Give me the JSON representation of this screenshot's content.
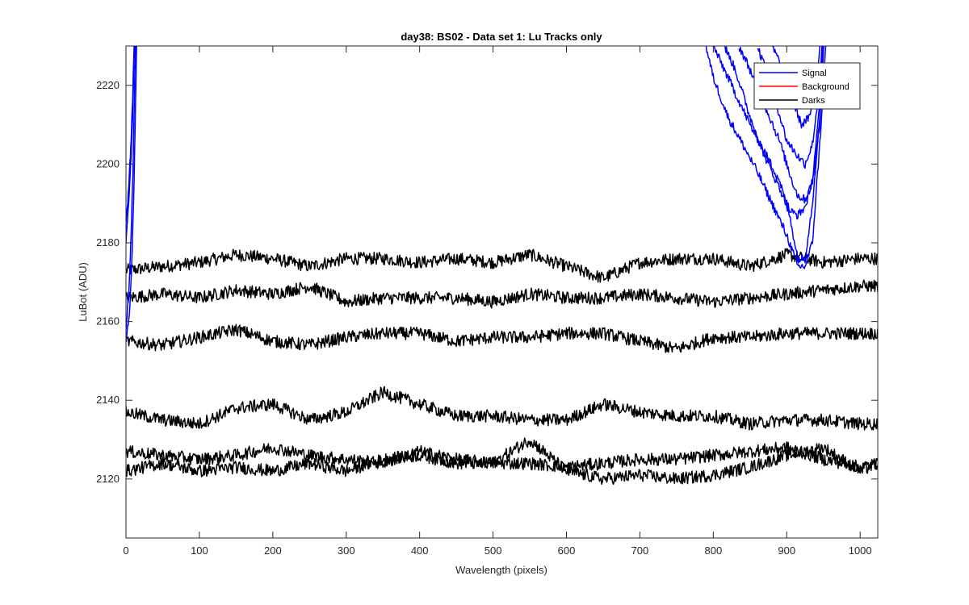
{
  "chart_data": {
    "type": "line",
    "title": "day38: BS02 - Data set 1: Lu Tracks only",
    "xlabel": "Wavelength (pixels)",
    "ylabel": "LuBot (ADU)",
    "xlim": [
      0,
      1024
    ],
    "ylim": [
      2105,
      2230
    ],
    "x_ticks": [
      0,
      100,
      200,
      300,
      400,
      500,
      600,
      700,
      800,
      900,
      1000
    ],
    "y_ticks": [
      2120,
      2140,
      2160,
      2180,
      2200,
      2220
    ],
    "grid": false,
    "legend": {
      "placement": "top-right",
      "entries": [
        {
          "label": "Signal",
          "color": "#0000ff"
        },
        {
          "label": "Background",
          "color": "#ff0000"
        },
        {
          "label": "Darks",
          "color": "#000000"
        }
      ]
    },
    "dark_tracks": [
      {
        "x": [
          0,
          50,
          100,
          150,
          200,
          250,
          300,
          350,
          400,
          450,
          500,
          550,
          600,
          650,
          700,
          750,
          800,
          850,
          900,
          950,
          1000,
          1024
        ],
        "y": [
          2173,
          2174,
          2175,
          2177,
          2176,
          2174,
          2176,
          2176,
          2175,
          2176,
          2175,
          2177,
          2174,
          2171,
          2175,
          2176,
          2176,
          2174,
          2177,
          2175,
          2176,
          2176
        ]
      },
      {
        "x": [
          0,
          50,
          100,
          150,
          200,
          250,
          300,
          350,
          400,
          450,
          500,
          550,
          600,
          650,
          700,
          750,
          800,
          850,
          900,
          950,
          1000,
          1024
        ],
        "y": [
          2166,
          2167,
          2166,
          2168,
          2167,
          2169,
          2165,
          2166,
          2166,
          2166,
          2165,
          2167,
          2166,
          2166,
          2167,
          2166,
          2165,
          2166,
          2167,
          2168,
          2169,
          2169
        ]
      },
      {
        "x": [
          0,
          50,
          100,
          150,
          200,
          250,
          300,
          350,
          400,
          450,
          500,
          550,
          600,
          650,
          700,
          750,
          800,
          850,
          900,
          950,
          1000,
          1024
        ],
        "y": [
          2155,
          2154,
          2156,
          2158,
          2155,
          2154,
          2156,
          2157,
          2157,
          2155,
          2156,
          2156,
          2157,
          2157,
          2155,
          2153,
          2156,
          2156,
          2157,
          2157,
          2157,
          2157
        ]
      },
      {
        "x": [
          0,
          50,
          100,
          150,
          200,
          250,
          300,
          350,
          400,
          450,
          500,
          550,
          600,
          650,
          700,
          750,
          800,
          850,
          900,
          950,
          1000,
          1024
        ],
        "y": [
          2137,
          2135,
          2134,
          2138,
          2139,
          2135,
          2137,
          2142,
          2139,
          2136,
          2136,
          2135,
          2135,
          2139,
          2137,
          2136,
          2136,
          2134,
          2135,
          2135,
          2134,
          2134
        ]
      },
      {
        "x": [
          0,
          50,
          100,
          150,
          200,
          250,
          300,
          350,
          400,
          450,
          500,
          550,
          600,
          650,
          700,
          750,
          800,
          850,
          900,
          950,
          1000,
          1024
        ],
        "y": [
          2127,
          2126,
          2125,
          2126,
          2128,
          2126,
          2125,
          2124,
          2127,
          2125,
          2124,
          2124,
          2123,
          2124,
          2125,
          2125,
          2126,
          2127,
          2128,
          2125,
          2123,
          2124
        ]
      },
      {
        "x": [
          0,
          50,
          100,
          150,
          200,
          250,
          300,
          350,
          400,
          450,
          500,
          550,
          600,
          650,
          700,
          750,
          800,
          850,
          900,
          950,
          1000,
          1024
        ],
        "y": [
          2122,
          2124,
          2122,
          2123,
          2122,
          2124,
          2122,
          2125,
          2126,
          2124,
          2124,
          2130,
          2122,
          2120,
          2121,
          2120,
          2121,
          2123,
          2126,
          2128,
          2122,
          2124
        ]
      }
    ],
    "signal_left": [
      {
        "x": [
          0,
          5,
          8,
          11,
          13,
          15
        ],
        "y": [
          2155,
          2162,
          2175,
          2195,
          2215,
          2235
        ]
      },
      {
        "x": [
          0,
          4,
          7,
          10,
          12,
          14
        ],
        "y": [
          2158,
          2168,
          2182,
          2202,
          2222,
          2235
        ]
      },
      {
        "x": [
          0,
          3,
          6,
          9,
          11,
          13
        ],
        "y": [
          2180,
          2188,
          2198,
          2212,
          2226,
          2235
        ]
      },
      {
        "x": [
          0,
          3,
          6,
          9,
          11,
          12
        ],
        "y": [
          2185,
          2192,
          2202,
          2216,
          2230,
          2235
        ]
      }
    ],
    "signal_right": [
      {
        "x": [
          790,
          800,
          820,
          840,
          860,
          880,
          900,
          915,
          925,
          935,
          945,
          955
        ],
        "y": [
          2230,
          2222,
          2212,
          2205,
          2198,
          2190,
          2182,
          2174,
          2174,
          2180,
          2205,
          2235
        ]
      },
      {
        "x": [
          800,
          810,
          830,
          850,
          870,
          890,
          905,
          915,
          925,
          935,
          945,
          952
        ],
        "y": [
          2230,
          2226,
          2218,
          2210,
          2203,
          2196,
          2186,
          2176,
          2176,
          2190,
          2212,
          2235
        ]
      },
      {
        "x": [
          815,
          830,
          850,
          870,
          890,
          905,
          915,
          925,
          935,
          945,
          950
        ],
        "y": [
          2230,
          2224,
          2212,
          2202,
          2194,
          2188,
          2187,
          2189,
          2196,
          2215,
          2235
        ]
      },
      {
        "x": [
          835,
          850,
          870,
          890,
          905,
          915,
          925,
          935,
          945,
          950
        ],
        "y": [
          2230,
          2224,
          2215,
          2206,
          2197,
          2192,
          2191,
          2195,
          2210,
          2235
        ]
      },
      {
        "x": [
          860,
          870,
          885,
          900,
          915,
          925,
          935,
          945,
          950
        ],
        "y": [
          2230,
          2225,
          2216,
          2206,
          2202,
          2200,
          2205,
          2220,
          2235
        ]
      },
      {
        "x": [
          880,
          890,
          905,
          920,
          932,
          942,
          948
        ],
        "y": [
          2230,
          2226,
          2218,
          2210,
          2212,
          2224,
          2235
        ]
      }
    ]
  }
}
